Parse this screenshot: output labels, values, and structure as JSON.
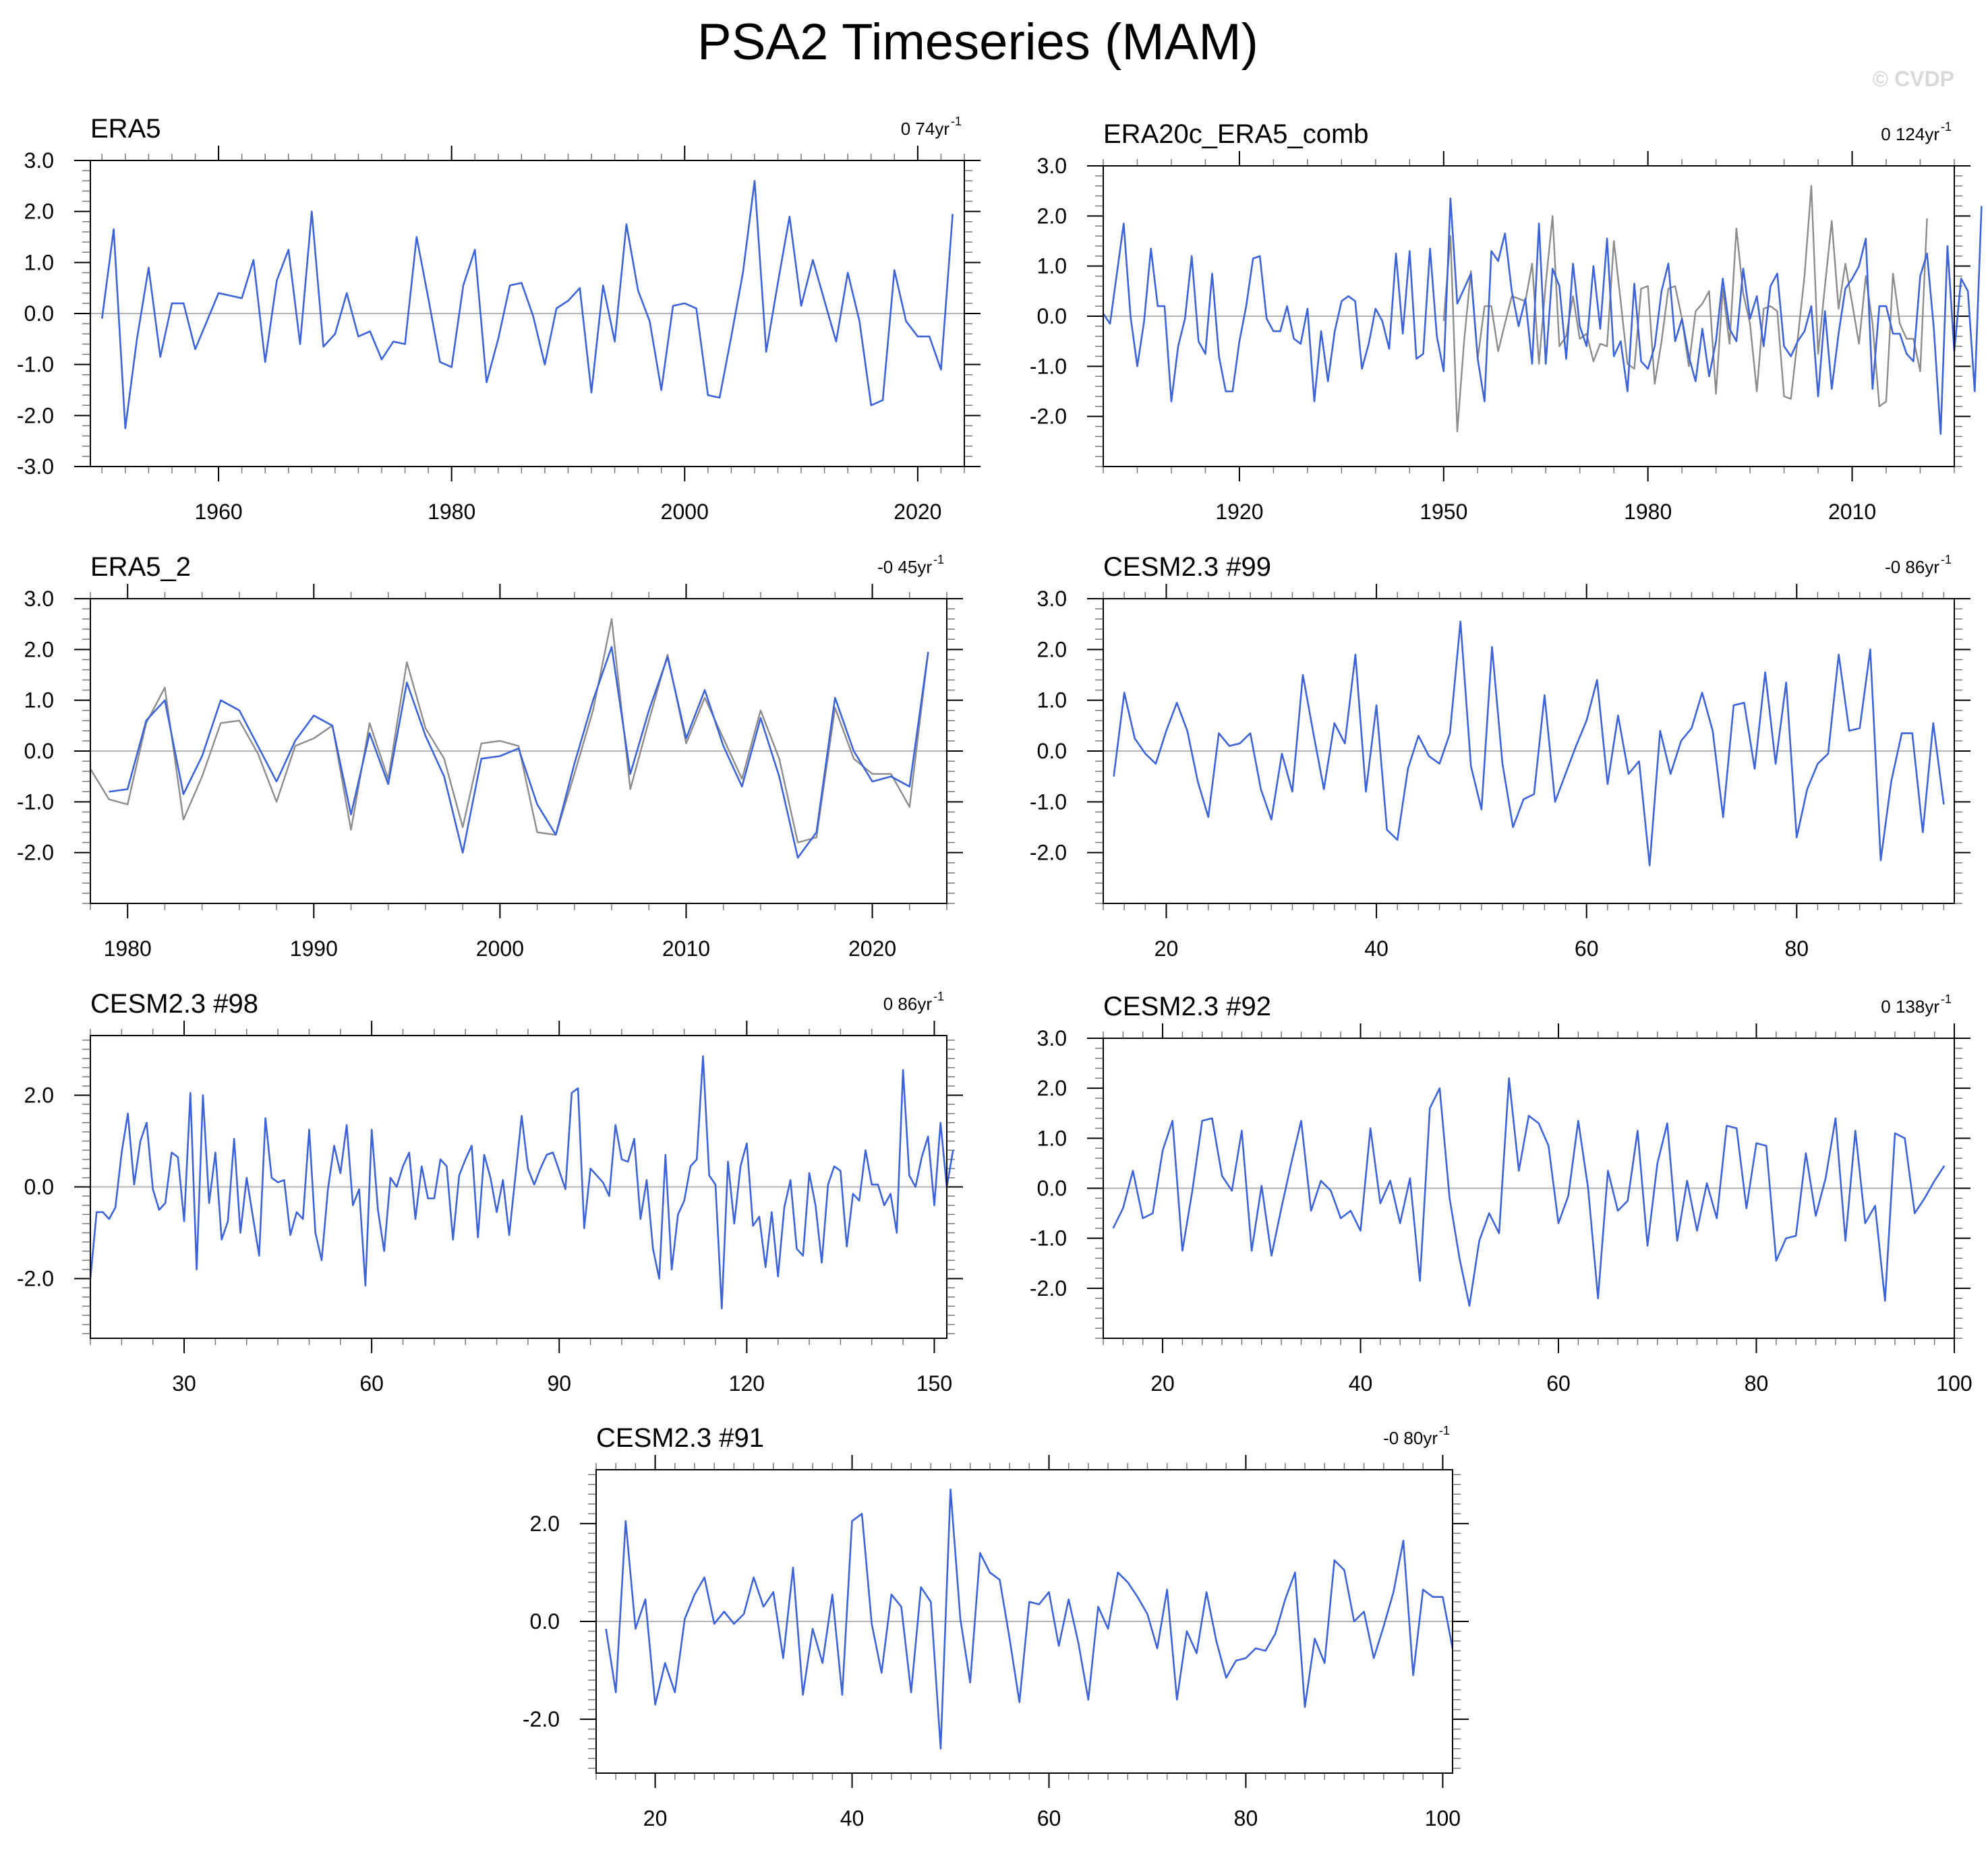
{
  "title": "PSA2 Timeseries (MAM)",
  "watermark": "© CVDP",
  "colors": {
    "series_primary": "#3d63d9",
    "series_secondary": "#8c8c8c",
    "zero_line": "#b4b4b4",
    "axis": "#000000"
  },
  "chart_data": [
    {
      "type": "line",
      "title": "ERA5",
      "trend": "0 74yr",
      "trend_exponent": "-1",
      "xlim": [
        1949,
        2024
      ],
      "ylim": [
        -3.0,
        3.0
      ],
      "xticks": [
        1960,
        1980,
        2000,
        2020
      ],
      "yticks": [
        "3.0",
        "2.0",
        "1.0",
        "0.0",
        "-1.0",
        "-2.0",
        "-3.0"
      ],
      "x_start": 1950,
      "x_step": 1,
      "series": [
        {
          "color": "primary",
          "values": [
            -0.1,
            1.65,
            -2.25,
            -0.5,
            0.9,
            -0.85,
            0.2,
            0.2,
            -0.7,
            -0.15,
            0.4,
            0.35,
            0.3,
            1.05,
            -0.95,
            0.65,
            1.25,
            -0.6,
            2.0,
            -0.65,
            -0.4,
            0.4,
            -0.45,
            -0.35,
            -0.9,
            -0.55,
            -0.6,
            1.5,
            0.3,
            -0.95,
            -1.05,
            0.55,
            1.25,
            -1.35,
            -0.5,
            0.55,
            0.6,
            -0.05,
            -1.0,
            0.1,
            0.25,
            0.5,
            -1.55,
            0.55,
            -0.55,
            1.75,
            0.45,
            -0.15,
            -1.5,
            0.15,
            0.2,
            0.1,
            -1.6,
            -1.65,
            -0.45,
            0.8,
            2.6,
            -0.75,
            0.6,
            1.9,
            0.15,
            1.05,
            0.25,
            -0.55,
            0.8,
            -0.15,
            -1.8,
            -1.7,
            0.85,
            -0.15,
            -0.45,
            -0.45,
            -1.1,
            1.95
          ]
        }
      ]
    },
    {
      "type": "line",
      "title": "ERA20c_ERA5_comb",
      "trend": "0 124yr",
      "trend_exponent": "-1",
      "xlim": [
        1900,
        2025
      ],
      "ylim": [
        -3.0,
        3.0
      ],
      "xticks": [
        1920,
        1950,
        1980,
        2010
      ],
      "yticks": [
        "3.0",
        "2.0",
        "1.0",
        "0.0",
        "-1.0",
        "-2.0"
      ],
      "x_start": 1900,
      "x_step": 1,
      "series": [
        {
          "color": "secondary",
          "x_start": 1950,
          "values": [
            -0.1,
            1.6,
            -2.3,
            -0.5,
            0.9,
            -0.85,
            0.2,
            0.2,
            -0.7,
            -0.15,
            0.4,
            0.35,
            0.3,
            1.05,
            -0.95,
            0.65,
            2.0,
            -0.6,
            -0.4,
            0.4,
            -0.45,
            -0.35,
            -0.9,
            -0.55,
            -0.6,
            1.5,
            0.3,
            -0.95,
            -1.05,
            0.55,
            0.6,
            -1.35,
            -0.5,
            0.55,
            0.6,
            -0.05,
            -1.0,
            0.1,
            0.25,
            0.5,
            -1.55,
            0.55,
            -0.55,
            1.75,
            0.45,
            -0.15,
            -1.5,
            0.15,
            0.2,
            0.1,
            -1.6,
            -1.65,
            -0.45,
            0.8,
            2.6,
            -0.75,
            0.6,
            1.9,
            0.15,
            1.05,
            0.25,
            -0.55,
            0.8,
            -0.15,
            -1.8,
            -1.7,
            0.85,
            -0.15,
            -0.45,
            -0.45,
            -1.1,
            1.95
          ]
        },
        {
          "color": "primary",
          "values": [
            0.05,
            -0.15,
            0.85,
            1.85,
            0.0,
            -1.0,
            -0.1,
            1.35,
            0.2,
            0.2,
            -1.7,
            -0.6,
            -0.05,
            1.2,
            -0.5,
            -0.75,
            0.85,
            -0.8,
            -1.5,
            -1.5,
            -0.5,
            0.2,
            1.15,
            1.2,
            -0.05,
            -0.3,
            -0.3,
            0.2,
            -0.45,
            -0.55,
            0.15,
            -1.7,
            -0.3,
            -1.3,
            -0.3,
            0.3,
            0.4,
            0.3,
            -1.05,
            -0.55,
            0.15,
            -0.1,
            -0.65,
            1.25,
            -0.35,
            1.3,
            -0.85,
            -0.75,
            1.35,
            -0.4,
            -1.1,
            2.35,
            0.25,
            0.55,
            0.85,
            -0.85,
            -1.7,
            1.3,
            1.1,
            1.65,
            0.5,
            -0.2,
            0.35,
            -0.95,
            1.85,
            -0.95,
            0.95,
            0.6,
            -0.85,
            1.05,
            -0.2,
            -0.6,
            1.0,
            -0.25,
            1.55,
            -0.8,
            -0.5,
            -1.5,
            0.65,
            -0.9,
            -1.05,
            -0.6,
            0.5,
            1.05,
            -0.5,
            -0.05,
            -0.8,
            -1.3,
            -0.25,
            -1.2,
            -0.5,
            0.75,
            -0.25,
            -0.5,
            0.95,
            -0.05,
            0.4,
            -0.6,
            0.6,
            0.85,
            -0.6,
            -0.8,
            -0.5,
            -0.3,
            0.2,
            -1.6,
            0.1,
            -1.45,
            -0.35,
            0.55,
            0.75,
            1.0,
            1.55,
            -1.45,
            0.2,
            0.2,
            -0.35,
            -0.35,
            -0.75,
            -0.9,
            0.8,
            1.25,
            -0.25,
            -2.35,
            1.4,
            -0.7,
            0.75,
            0.5,
            -1.5,
            2.2
          ]
        }
      ]
    },
    {
      "type": "line",
      "title": "ERA5_2",
      "trend": "-0 45yr",
      "trend_exponent": "-1",
      "xlim": [
        1978,
        2024
      ],
      "ylim": [
        -3.0,
        3.0
      ],
      "xticks": [
        1980,
        1990,
        2000,
        2010,
        2020
      ],
      "yticks": [
        "3.0",
        "2.0",
        "1.0",
        "0.0",
        "-1.0",
        "-2.0"
      ],
      "x_start": 1978,
      "x_step": 1,
      "series": [
        {
          "color": "secondary",
          "values": [
            -0.35,
            -0.95,
            -1.05,
            0.55,
            1.25,
            -1.35,
            -0.5,
            0.55,
            0.6,
            -0.05,
            -1.0,
            0.1,
            0.25,
            0.5,
            -1.55,
            0.55,
            -0.55,
            1.75,
            0.45,
            -0.15,
            -1.5,
            0.15,
            0.2,
            0.1,
            -1.6,
            -1.65,
            -0.45,
            0.8,
            2.6,
            -0.75,
            0.6,
            1.9,
            0.15,
            1.05,
            0.25,
            -0.55,
            0.8,
            -0.15,
            -1.8,
            -1.7,
            0.85,
            -0.15,
            -0.45,
            -0.45,
            -1.1,
            1.95
          ]
        },
        {
          "color": "primary",
          "values": [
            null,
            -0.8,
            -0.75,
            0.6,
            1.0,
            -0.85,
            -0.1,
            1.0,
            0.8,
            0.1,
            -0.6,
            0.2,
            0.7,
            0.5,
            -1.25,
            0.35,
            -0.65,
            1.35,
            0.3,
            -0.5,
            -2.0,
            -0.15,
            -0.1,
            0.05,
            -1.05,
            -1.65,
            -0.25,
            1.0,
            2.05,
            -0.45,
            0.8,
            1.85,
            0.25,
            1.2,
            0.1,
            -0.7,
            0.65,
            -0.5,
            -2.1,
            -1.6,
            1.05,
            0.0,
            -0.6,
            -0.5,
            -0.7,
            1.95
          ]
        }
      ]
    },
    {
      "type": "line",
      "title": "CESM2.3 #99",
      "trend": "-0 86yr",
      "trend_exponent": "-1",
      "xlim": [
        14,
        95
      ],
      "ylim": [
        -3.0,
        3.0
      ],
      "xticks": [
        20,
        40,
        60,
        80
      ],
      "yticks": [
        "3.0",
        "2.0",
        "1.0",
        "0.0",
        "-1.0",
        "-2.0"
      ],
      "x_start": 15,
      "x_step": 1,
      "series": [
        {
          "color": "primary",
          "values": [
            -0.5,
            1.15,
            0.25,
            -0.05,
            -0.25,
            0.4,
            0.95,
            0.4,
            -0.6,
            -1.3,
            0.35,
            0.1,
            0.15,
            0.35,
            -0.75,
            -1.35,
            -0.05,
            -0.8,
            1.5,
            0.35,
            -0.75,
            0.55,
            0.15,
            1.9,
            -0.8,
            0.9,
            -1.55,
            -1.75,
            -0.35,
            0.3,
            -0.1,
            -0.25,
            0.35,
            2.55,
            -0.3,
            -1.15,
            2.05,
            -0.25,
            -1.5,
            -0.95,
            -0.85,
            1.1,
            -1.0,
            -0.45,
            0.1,
            0.6,
            1.4,
            -0.65,
            0.7,
            -0.45,
            -0.2,
            -2.25,
            0.4,
            -0.45,
            0.2,
            0.45,
            1.15,
            0.4,
            -1.3,
            0.9,
            0.95,
            -0.35,
            1.55,
            -0.25,
            1.35,
            -1.7,
            -0.75,
            -0.25,
            -0.05,
            1.9,
            0.4,
            0.45,
            2.0,
            -2.15,
            -0.6,
            0.35,
            0.35,
            -1.6,
            0.55,
            -1.05
          ]
        }
      ]
    },
    {
      "type": "line",
      "title": "CESM2.3 #98",
      "trend": "0 86yr",
      "trend_exponent": "-1",
      "xlim": [
        15,
        152
      ],
      "ylim": [
        -3.3,
        3.3
      ],
      "xticks": [
        30,
        60,
        90,
        120,
        150
      ],
      "yticks": [
        "2.0",
        "0.0",
        "-2.0"
      ],
      "x_start": 15,
      "x_step": 1,
      "series": [
        {
          "color": "primary",
          "values": [
            -2.0,
            -0.55,
            -0.55,
            -0.7,
            -0.45,
            0.75,
            1.6,
            0.05,
            1.0,
            1.4,
            -0.05,
            -0.5,
            -0.35,
            0.75,
            0.65,
            -0.75,
            2.05,
            -1.8,
            2.0,
            -0.35,
            0.75,
            -1.15,
            -0.75,
            1.05,
            -1.0,
            0.2,
            -0.65,
            -1.5,
            1.5,
            0.2,
            0.1,
            0.15,
            -1.05,
            -0.55,
            -0.7,
            1.25,
            -1.0,
            -1.6,
            -0.05,
            0.9,
            0.3,
            1.35,
            -0.4,
            -0.05,
            -2.15,
            1.25,
            -0.5,
            -1.4,
            0.2,
            0.0,
            0.45,
            0.75,
            -0.7,
            0.45,
            -0.25,
            -0.25,
            0.6,
            0.45,
            -1.15,
            0.25,
            0.6,
            0.9,
            -1.1,
            0.7,
            0.2,
            -0.55,
            0.15,
            -1.05,
            0.25,
            1.55,
            0.4,
            0.05,
            0.4,
            0.7,
            0.75,
            0.35,
            -0.05,
            2.05,
            2.15,
            -0.9,
            0.4,
            0.25,
            0.1,
            -0.2,
            1.35,
            0.6,
            0.55,
            1.05,
            -0.7,
            0.15,
            -1.35,
            -2.0,
            0.7,
            -1.8,
            -0.6,
            -0.3,
            0.45,
            0.6,
            2.85,
            0.25,
            0.05,
            -2.65,
            0.55,
            -0.8,
            0.45,
            0.95,
            -0.85,
            -0.65,
            -1.75,
            -0.55,
            -1.95,
            -0.45,
            0.15,
            -1.35,
            -1.5,
            0.3,
            -0.4,
            -1.65,
            0.05,
            0.45,
            0.35,
            -1.3,
            -0.15,
            -0.3,
            0.8,
            0.05,
            0.05,
            -0.4,
            -0.15,
            -1.0,
            2.55,
            0.25,
            0.0,
            0.65,
            1.1,
            -0.4,
            1.4,
            0.0,
            0.8
          ]
        }
      ]
    },
    {
      "type": "line",
      "title": "CESM2.3 #92",
      "trend": "0 138yr",
      "trend_exponent": "-1",
      "xlim": [
        14,
        100
      ],
      "ylim": [
        -3.0,
        3.0
      ],
      "xticks": [
        20,
        40,
        60,
        80,
        100
      ],
      "yticks": [
        "3.0",
        "2.0",
        "1.0",
        "0.0",
        "-1.0",
        "-2.0"
      ],
      "x_start": 15,
      "x_step": 1,
      "series": [
        {
          "color": "primary",
          "values": [
            -0.8,
            -0.4,
            0.35,
            -0.6,
            -0.5,
            0.75,
            1.35,
            -1.25,
            -0.05,
            1.35,
            1.4,
            0.25,
            -0.05,
            1.15,
            -1.25,
            0.05,
            -1.35,
            -0.4,
            0.5,
            1.35,
            -0.45,
            0.15,
            -0.05,
            -0.6,
            -0.45,
            -0.85,
            1.2,
            -0.3,
            0.15,
            -0.7,
            0.2,
            -1.85,
            1.6,
            2.0,
            -0.2,
            -1.4,
            -2.35,
            -1.05,
            -0.5,
            -0.9,
            2.2,
            0.35,
            1.45,
            1.3,
            0.85,
            -0.7,
            -0.15,
            1.35,
            0.0,
            -2.2,
            0.35,
            -0.45,
            -0.25,
            1.15,
            -1.15,
            0.5,
            1.3,
            -1.05,
            0.15,
            -0.85,
            0.1,
            -0.6,
            1.25,
            1.2,
            -0.4,
            0.9,
            0.85,
            -1.45,
            -1.0,
            -0.95,
            0.7,
            -0.55,
            0.2,
            1.4,
            -1.05,
            1.15,
            -0.7,
            -0.35,
            -2.25,
            1.1,
            1.0,
            -0.5,
            -0.2,
            0.15,
            0.45
          ]
        }
      ]
    },
    {
      "type": "line",
      "title": "CESM2.3 #91",
      "trend": "-0 80yr",
      "trend_exponent": "-1",
      "xlim": [
        14,
        101
      ],
      "ylim": [
        -3.1,
        3.1
      ],
      "xticks": [
        20,
        40,
        60,
        80,
        100
      ],
      "yticks": [
        "2.0",
        "0.0",
        "-2.0"
      ],
      "x_start": 15,
      "x_step": 1,
      "series": [
        {
          "color": "primary",
          "values": [
            -0.15,
            -1.45,
            2.05,
            -0.15,
            0.45,
            -1.7,
            -0.85,
            -1.45,
            0.05,
            0.55,
            0.9,
            -0.05,
            0.2,
            -0.05,
            0.15,
            0.9,
            0.3,
            0.6,
            -0.75,
            1.1,
            -1.5,
            -0.15,
            -0.85,
            0.55,
            -1.5,
            2.05,
            2.2,
            -0.05,
            -1.05,
            0.55,
            0.3,
            -1.45,
            0.7,
            0.4,
            -2.6,
            2.7,
            0.05,
            -1.25,
            1.4,
            1.0,
            0.85,
            -0.35,
            -1.65,
            0.4,
            0.35,
            0.6,
            -0.5,
            0.45,
            -0.45,
            -1.6,
            0.3,
            -0.15,
            1.0,
            0.8,
            0.5,
            0.15,
            -0.55,
            0.65,
            -1.6,
            -0.2,
            -0.65,
            0.6,
            -0.4,
            -1.15,
            -0.8,
            -0.75,
            -0.55,
            -0.6,
            -0.25,
            0.45,
            1.0,
            -1.75,
            -0.35,
            -0.85,
            1.25,
            1.05,
            0.0,
            0.2,
            -0.75,
            -0.1,
            0.6,
            1.65,
            -1.1,
            0.65,
            0.5,
            0.5,
            -0.55
          ]
        }
      ]
    }
  ]
}
